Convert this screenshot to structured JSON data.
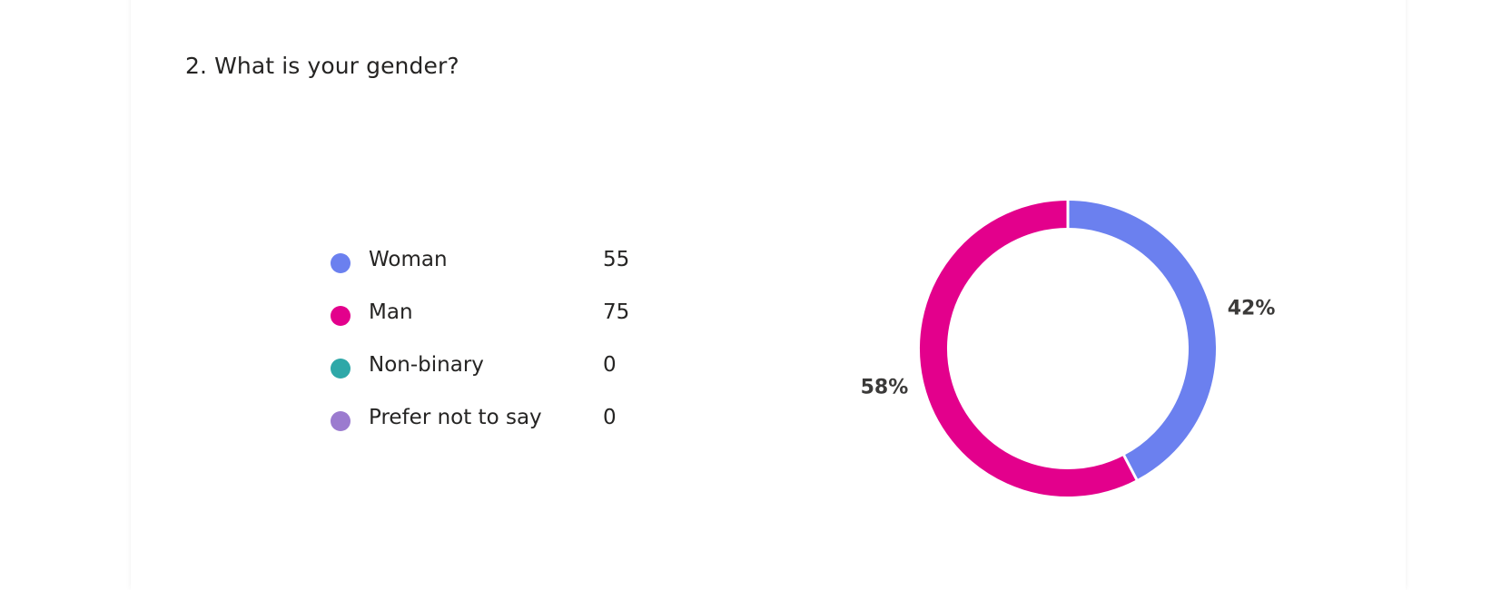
{
  "question": {
    "title": "2. What is your gender?"
  },
  "chart_data": {
    "type": "pie",
    "style": "donut",
    "title": "2. What is your gender?",
    "categories": [
      "Woman",
      "Man",
      "Non-binary",
      "Prefer not to say"
    ],
    "values": [
      55,
      75,
      0,
      0
    ],
    "colors": [
      "#6b80ef",
      "#e3008c",
      "#2ea8a8",
      "#9b7bcf"
    ],
    "slice_labels": [
      "42%",
      "58%",
      "",
      ""
    ],
    "legend_position": "left"
  },
  "legend": {
    "items": [
      {
        "label": "Woman",
        "count": "55",
        "color": "#6b80ef"
      },
      {
        "label": "Man",
        "count": "75",
        "color": "#e3008c"
      },
      {
        "label": "Non-binary",
        "count": "0",
        "color": "#2ea8a8"
      },
      {
        "label": "Prefer not to say",
        "count": "0",
        "color": "#9b7bcf"
      }
    ]
  }
}
